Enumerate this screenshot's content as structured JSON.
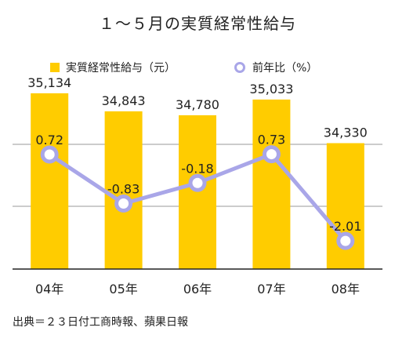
{
  "chart_data": {
    "type": "bar",
    "title": "１～５月の実質経常性給与",
    "categories": [
      "04年",
      "05年",
      "06年",
      "07年",
      "08年"
    ],
    "series": [
      {
        "name": "実質経常性給与（元）",
        "type": "bar",
        "color": "#FFCC00",
        "values": [
          35134,
          34843,
          34780,
          35033,
          34330
        ],
        "labels": [
          "35,134",
          "34,843",
          "34,780",
          "35,033",
          "34,330"
        ]
      },
      {
        "name": "前年比（%）",
        "type": "line",
        "color": "#A9A6E8",
        "values": [
          0.72,
          -0.83,
          -0.18,
          0.73,
          -2.01
        ],
        "labels": [
          "0.72",
          "-0.83",
          "-0.18",
          "0.73",
          "-2.01"
        ]
      }
    ],
    "grid": true,
    "legend_position": "top"
  },
  "source": "出典＝２３日付工商時報、蘋果日報"
}
